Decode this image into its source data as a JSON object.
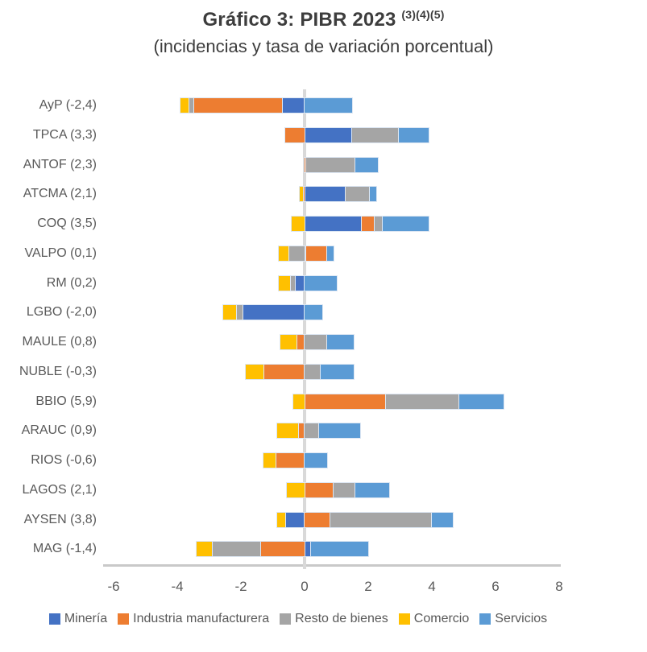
{
  "title": {
    "text": "Gráfico 3: PIBR 2023",
    "superscript": "(3)(4)(5)"
  },
  "subtitle": "(incidencias y tasa de variación porcentual)",
  "chart_data": {
    "type": "bar",
    "orientation": "horizontal",
    "stacked": true,
    "grid": false,
    "legend_position": "bottom",
    "xlim": [
      -6,
      8
    ],
    "x_ticks": [
      "-6",
      "-4",
      "-2",
      "0",
      "2",
      "4",
      "6",
      "8"
    ],
    "categories": [
      "AyP (-2,4)",
      "TPCA (3,3)",
      "ANTOF (2,3)",
      "ATCMA (2,1)",
      "COQ (3,5)",
      "VALPO (0,1)",
      "RM (0,2)",
      "LGBO (-2,0)",
      "MAULE (0,8)",
      "NUBLE (-0,3)",
      "BBIO (5,9)",
      "ARAUC (0,9)",
      "RIOS (-0,6)",
      "LAGOS (2,1)",
      "AYSEN (3,8)",
      "MAG (-1,4)"
    ],
    "totals": [
      -2.4,
      3.3,
      2.3,
      2.1,
      3.5,
      0.1,
      0.2,
      -2.0,
      0.8,
      -0.3,
      5.9,
      0.9,
      -0.6,
      2.1,
      3.8,
      -1.4
    ],
    "series": [
      {
        "name": "Minería",
        "color": "#4472C4",
        "values": [
          -0.7,
          1.5,
          0,
          1.3,
          1.8,
          0.05,
          -0.3,
          -1.95,
          0,
          0,
          0,
          0,
          0,
          0,
          -0.6,
          0.2
        ]
      },
      {
        "name": "Industria manufacturera",
        "color": "#ED7D31",
        "values": [
          -2.8,
          -0.6,
          0.05,
          -0.05,
          0.4,
          0.65,
          0,
          0,
          -0.25,
          -1.3,
          2.55,
          -0.2,
          -0.9,
          0.9,
          0.8,
          -1.4
        ]
      },
      {
        "name": "Resto de bienes",
        "color": "#A5A5A5",
        "values": [
          -0.15,
          1.45,
          1.55,
          0.75,
          0.25,
          -0.5,
          -0.15,
          -0.2,
          0.7,
          0.5,
          2.3,
          0.45,
          0,
          0.7,
          3.2,
          -1.5
        ]
      },
      {
        "name": "Comercio",
        "color": "#FFC000",
        "values": [
          -0.25,
          0,
          0,
          -0.1,
          -0.4,
          -0.3,
          -0.35,
          -0.4,
          -0.5,
          -0.55,
          -0.35,
          -0.65,
          -0.4,
          -0.55,
          -0.25,
          -0.5
        ]
      },
      {
        "name": "Servicios",
        "color": "#5B9BD5",
        "values": [
          1.5,
          0.95,
          0.7,
          0.2,
          1.45,
          0.2,
          1.0,
          0.55,
          0.85,
          1.05,
          1.4,
          1.3,
          0.7,
          1.05,
          0.65,
          1.8
        ]
      }
    ],
    "colors": {
      "title_text": "#3d3d3d",
      "axis_text": "#595959",
      "axis_line": "#c9c9c9",
      "zero_line": "#d9d9d9"
    }
  }
}
